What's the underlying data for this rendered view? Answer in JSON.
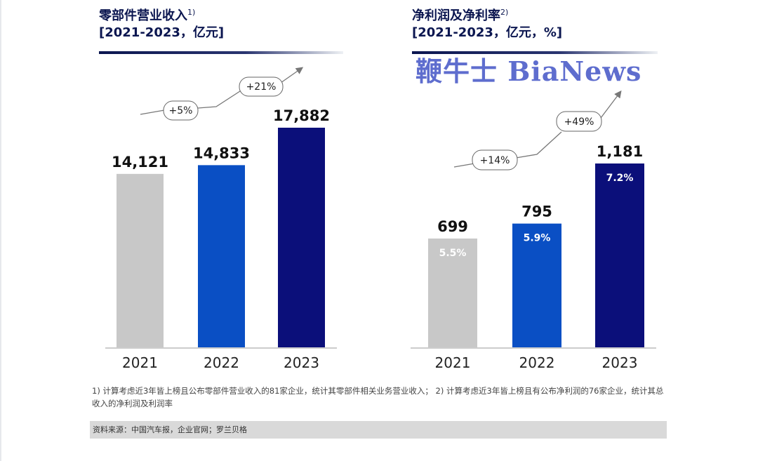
{
  "chart_data": [
    {
      "type": "bar",
      "title": "零部件营业收入",
      "title_note": "1)",
      "subtitle": "[2021-2023，亿元]",
      "categories": [
        "2021",
        "2022",
        "2023"
      ],
      "values": [
        14121,
        14833,
        17882
      ],
      "value_labels": [
        "14,121",
        "14,833",
        "17,882"
      ],
      "colors": [
        "#c8c8c8",
        "#0a4fc4",
        "#0b0f7a"
      ],
      "growth_annotations": [
        "+5%",
        "+21%"
      ],
      "ylabel": "亿元"
    },
    {
      "type": "bar",
      "title": "净利润及净利率",
      "title_note": "2)",
      "subtitle": "[2021-2023，亿元，%]",
      "categories": [
        "2021",
        "2022",
        "2023"
      ],
      "values": [
        699,
        795,
        1181
      ],
      "value_labels": [
        "699",
        "795",
        "1,181"
      ],
      "margins": [
        "5.5%",
        "5.9%",
        "7.2%"
      ],
      "colors": [
        "#c8c8c8",
        "#0a4fc4",
        "#0b0f7a"
      ],
      "growth_annotations": [
        "+14%",
        "+49%"
      ],
      "ylabel": "亿元"
    }
  ],
  "footnote": "1) 计算考虑近3年皆上榜且公布零部件营业收入的81家企业，统计其零部件相关业务营业收入；  2) 计算考虑近3年皆上榜且有公布净利润的76家企业，统计其总收入的净利润及利润率",
  "source": "资料来源：中国汽车报，企业官网；罗兰贝格",
  "watermark": "鞭牛士 BiaNews"
}
